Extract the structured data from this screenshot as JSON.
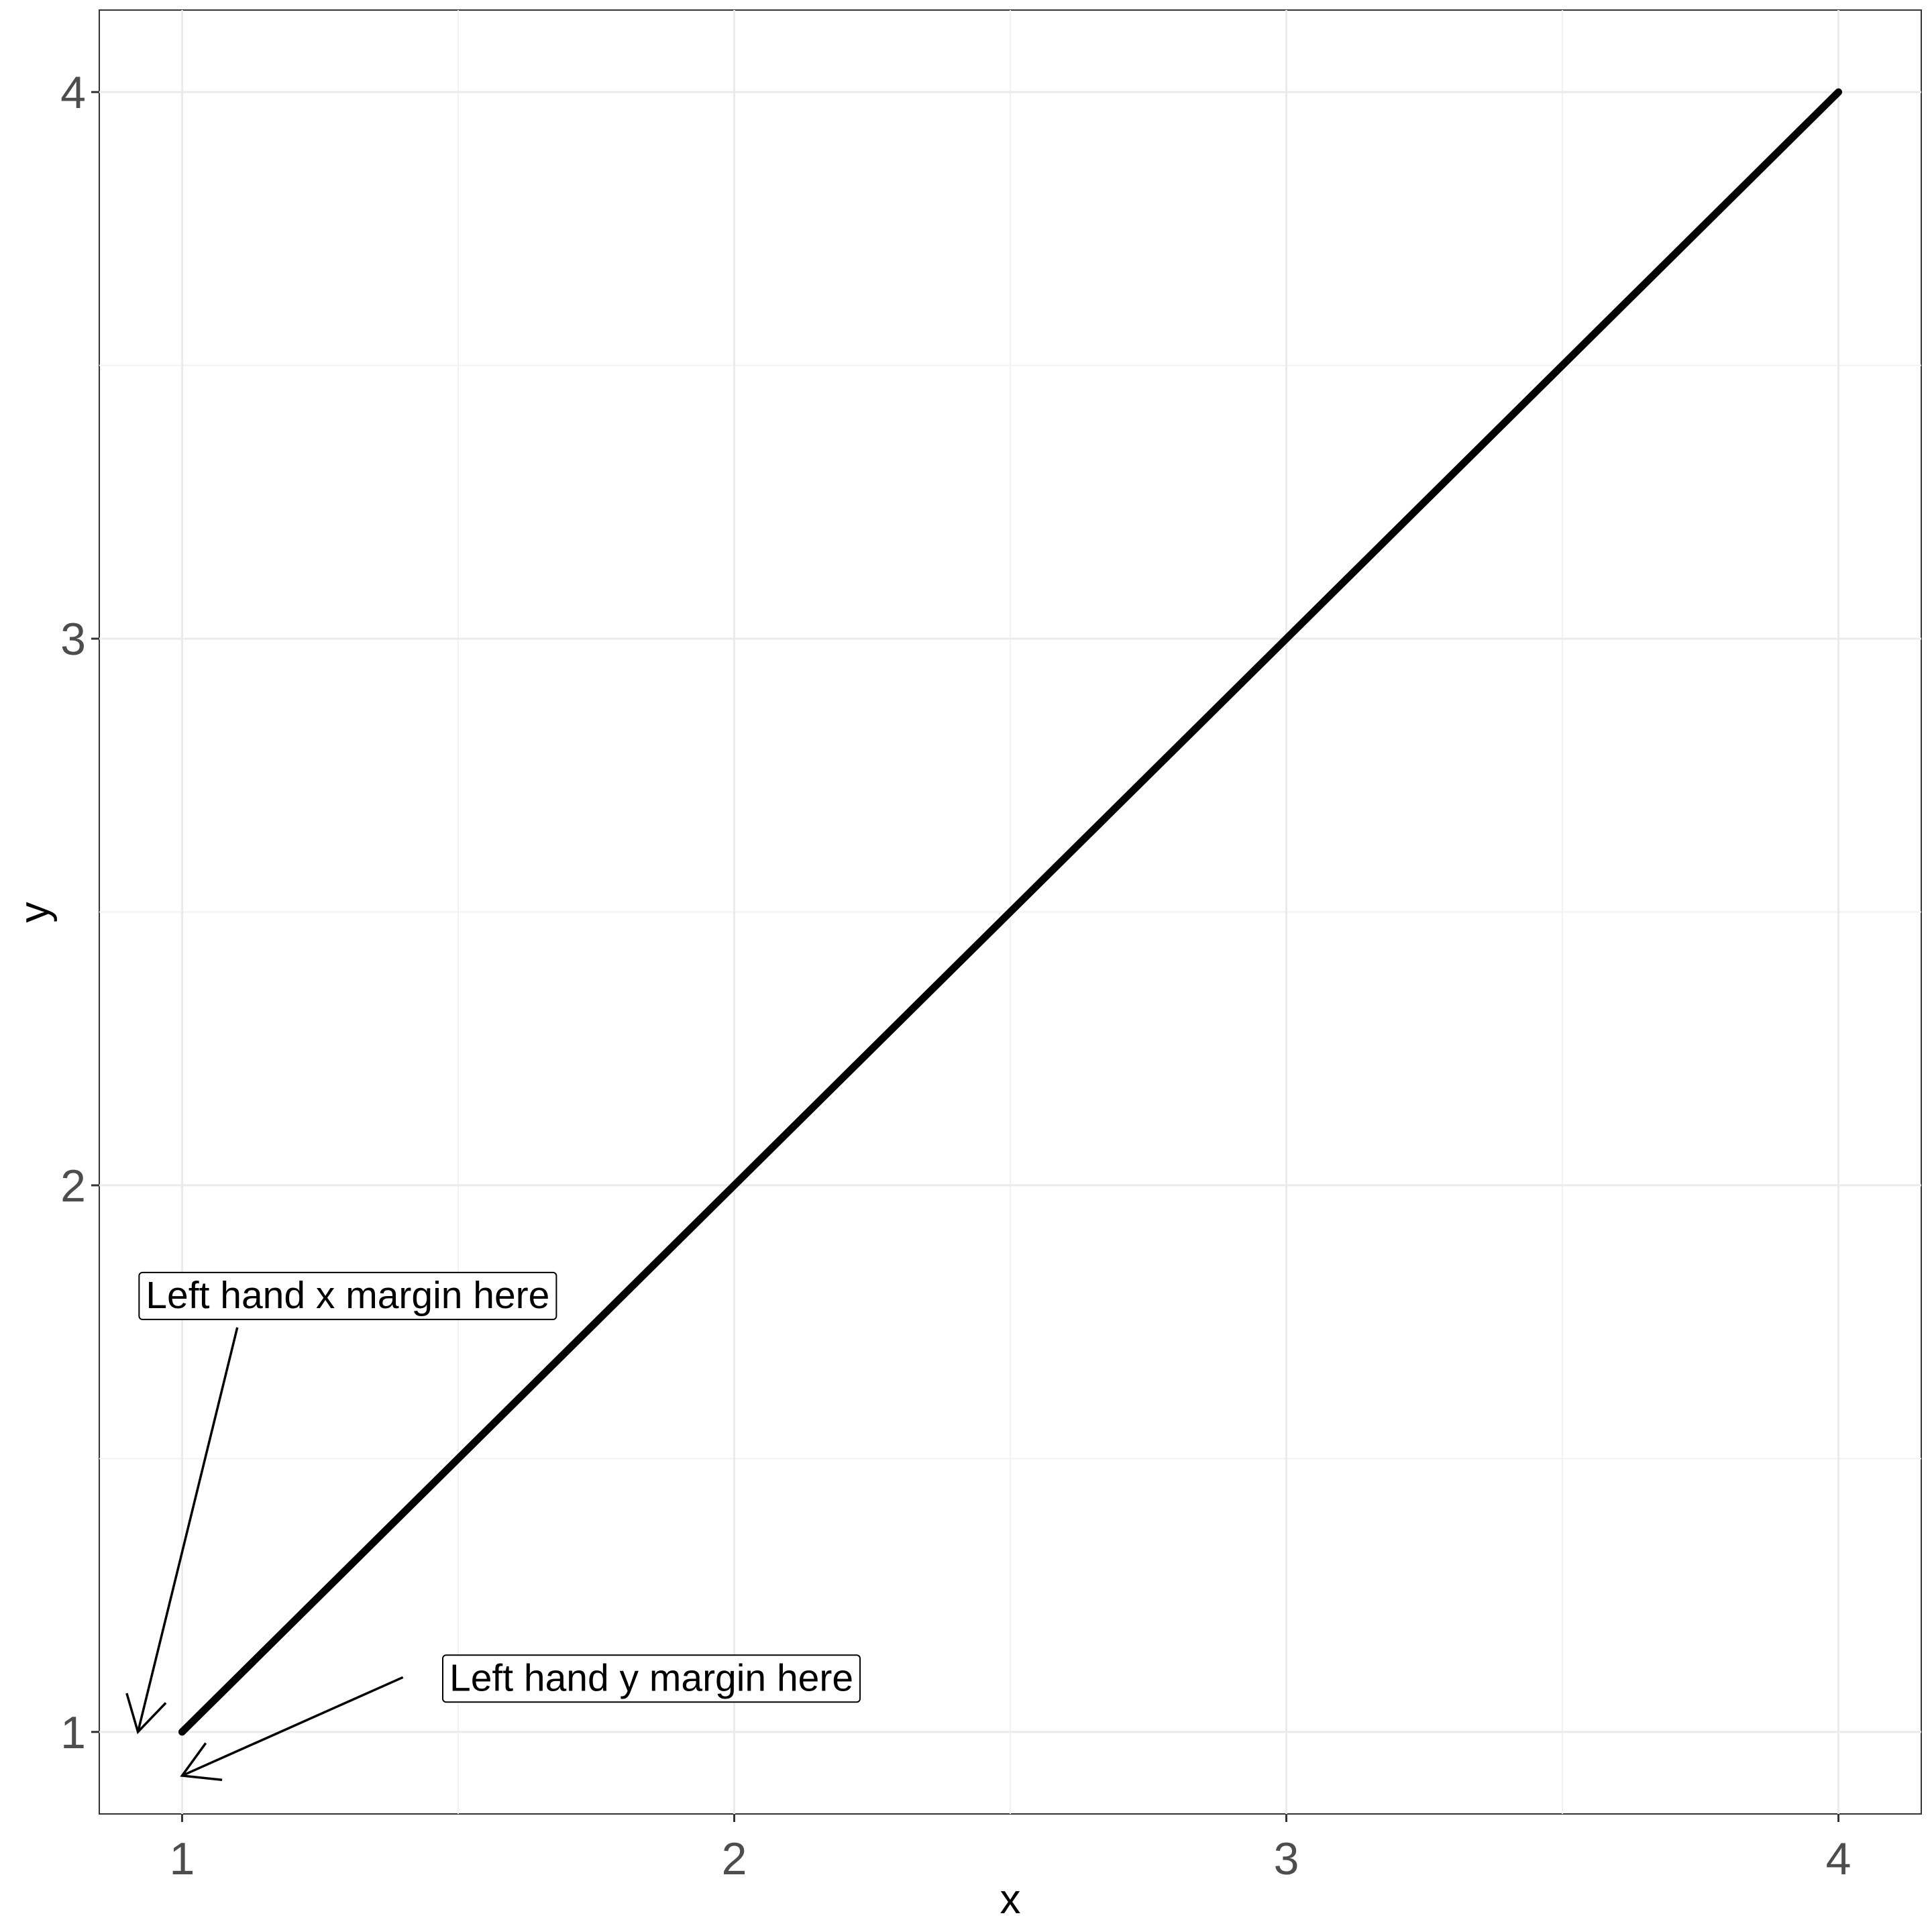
{
  "chart_data": {
    "type": "line",
    "xlabel": "x",
    "ylabel": "y",
    "xlim": [
      0.85,
      4.15
    ],
    "ylim": [
      0.85,
      4.15
    ],
    "x_ticks": [
      1,
      2,
      3,
      4
    ],
    "y_ticks": [
      1,
      2,
      3,
      4
    ],
    "grid": true,
    "series": [
      {
        "x": [
          1,
          4
        ],
        "y": [
          1,
          4
        ],
        "color": "#000000"
      }
    ],
    "annotations": [
      {
        "text": "Left hand x margin here",
        "label_at": [
          1.3,
          1.8
        ],
        "arrow_from": [
          1.1,
          1.74
        ],
        "arrow_to": [
          0.92,
          1.0
        ]
      },
      {
        "text": "Left hand y margin here",
        "label_at": [
          1.85,
          1.1
        ],
        "arrow_from": [
          1.4,
          1.1
        ],
        "arrow_to": [
          1.0,
          0.92
        ]
      }
    ]
  }
}
